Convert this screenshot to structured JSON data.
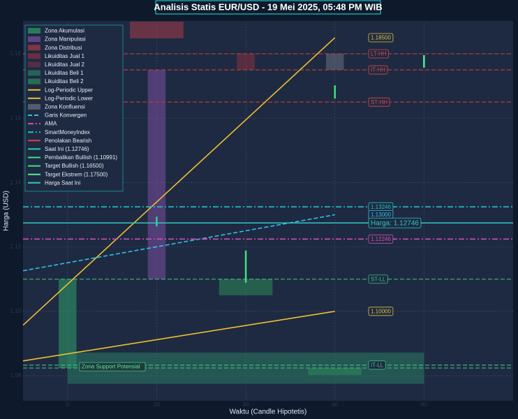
{
  "chart_data": {
    "type": "composite",
    "title": "Analisis Statis EUR/USD - 19 Mei 2025, 05:48 PM WIB",
    "x_label": "Waktu (Candle Hipotetis)",
    "y_label": "Harga (USD)",
    "xlim": [
      -10,
      100
    ],
    "ylim": [
      1.0722,
      1.1902
    ],
    "xticks": [
      0,
      20,
      40,
      60,
      80
    ],
    "yticks": [
      {
        "value": 1.08,
        "label": "1.08"
      },
      {
        "value": 1.1,
        "label": "1.10"
      },
      {
        "value": 1.12,
        "label": "1.12"
      },
      {
        "value": 1.14,
        "label": "1.14"
      },
      {
        "value": 1.16,
        "label": "1.16"
      },
      {
        "value": 1.18,
        "label": "1.18"
      }
    ],
    "grid": true,
    "legend": "upper left",
    "series": [
      {
        "name": "Zona Akumulasi",
        "kind": "zone",
        "color": "#2e9e6a",
        "zones": [
          [
            -2,
            2,
            1.0824,
            1.11
          ]
        ]
      },
      {
        "name": "Zona Manipulasi",
        "kind": "zone",
        "color": "#7a4fa0",
        "zones": [
          [
            18,
            22,
            1.11,
            1.175
          ]
        ]
      },
      {
        "name": "Zona Distribusi",
        "kind": "zone",
        "color": "#a83a4a",
        "zones": [
          [
            14,
            26,
            1.1848,
            1.19
          ]
        ]
      },
      {
        "name": "Likuiditas Jual 1",
        "kind": "zone",
        "color": "#8a3040",
        "zones": [
          [
            38,
            42,
            1.175,
            1.18
          ]
        ]
      },
      {
        "name": "Likuiditas Jual 2",
        "kind": "zone",
        "color": "#6a3048",
        "zones": []
      },
      {
        "name": "Likuiditas Beli 1",
        "kind": "zone",
        "color": "#2a7a62",
        "zones": [
          [
            0,
            80,
            1.0775,
            1.0872
          ]
        ]
      },
      {
        "name": "Likuiditas Beli 2",
        "kind": "zone",
        "color": "#2e8a5a",
        "zones": [
          [
            34,
            46,
            1.105,
            1.11
          ],
          [
            54,
            66,
            1.0802,
            1.0824
          ]
        ]
      },
      {
        "name": "Log-Periodic Upper",
        "kind": "line",
        "style": "solid",
        "color": "#f0c030",
        "x": [
          -10,
          60
        ],
        "values": [
          1.0957,
          1.185
        ]
      },
      {
        "name": "Log-Periodic Lower",
        "kind": "line",
        "style": "solid",
        "color": "#f0c030",
        "x": [
          -10,
          60
        ],
        "values": [
          1.0846,
          1.1
        ]
      },
      {
        "name": "Zona Konfluensi",
        "kind": "zone",
        "color": "#6a7080",
        "zones": [
          [
            58,
            62,
            1.175,
            1.18
          ]
        ]
      },
      {
        "name": "Garis Konvergen",
        "kind": "line",
        "style": "dashed",
        "color": "#30c0e8",
        "x": [
          -10,
          60
        ],
        "values": [
          1.1126,
          1.13
        ]
      },
      {
        "name": "AMA",
        "kind": "hline",
        "style": "dashdot",
        "color": "#d050b0",
        "values": [
          1.12246
        ]
      },
      {
        "name": "SmartMoneyIndex",
        "kind": "hline",
        "style": "dashdot",
        "color": "#20c0c0",
        "values": [
          1.13246
        ]
      },
      {
        "name": "Penolakan Bearish",
        "kind": "hline",
        "style": "solid",
        "color": "#e04040",
        "values": []
      },
      {
        "name": "Saat Ini (1.12746)",
        "kind": "vseg",
        "style": "solid",
        "color": "#30d0a0",
        "x": 20,
        "values": [
          1.1264,
          1.1294
        ]
      },
      {
        "name": "Pembalikan Bullish (1.10991)",
        "kind": "vseg",
        "style": "solid",
        "color": "#40e080",
        "x": 40,
        "values": [
          1.1089,
          1.1189
        ]
      },
      {
        "name": "Target Bullish (1.16500)",
        "kind": "vseg",
        "style": "solid",
        "color": "#40e080",
        "x": 60,
        "values": [
          1.1661,
          1.1702
        ]
      },
      {
        "name": "Target Ekstrem (1.17500)",
        "kind": "vseg",
        "style": "solid",
        "color": "#50f090",
        "x": 80,
        "values": [
          1.1757,
          1.1796
        ]
      },
      {
        "name": "Harga Saat Ini",
        "kind": "hline",
        "style": "solid",
        "color": "#30c8c0",
        "values": [
          1.12746
        ]
      }
    ],
    "levels": [
      {
        "value": 1.18,
        "color": "#c83a3a"
      },
      {
        "value": 1.175,
        "color": "#c83a3a"
      },
      {
        "value": 1.165,
        "color": "#c83a3a"
      },
      {
        "value": 1.11,
        "color": "#40c080"
      },
      {
        "value": 1.0833,
        "color": "#40c080"
      },
      {
        "value": 1.0824,
        "color": "#40c080"
      }
    ],
    "annotations": [
      {
        "text": "1.18500",
        "value": 1.185,
        "color": "#e0c040"
      },
      {
        "text": "LT-HH",
        "value": 1.18,
        "color": "#e04848"
      },
      {
        "text": "IT-HH",
        "value": 1.175,
        "color": "#e04848"
      },
      {
        "text": "ST-HH",
        "value": 1.165,
        "color": "#e04848"
      },
      {
        "text": "1.13246",
        "value": 1.13246,
        "color": "#20c0c0"
      },
      {
        "text": "1.13000",
        "value": 1.13,
        "color": "#30c0e8"
      },
      {
        "text": "Harga: 1.12746",
        "value": 1.12746,
        "color": "#30c8c0"
      },
      {
        "text": "1.12246",
        "value": 1.12246,
        "color": "#d050b0"
      },
      {
        "text": "ST-LL",
        "value": 1.11,
        "color": "#40c080"
      },
      {
        "text": "1.10000",
        "value": 1.1,
        "color": "#e0c040"
      },
      {
        "text": "IT-LL",
        "value": 1.0833,
        "color": "#40c080"
      }
    ],
    "support_label": {
      "text": "Zona Support Potensial",
      "value": 1.0828
    }
  }
}
